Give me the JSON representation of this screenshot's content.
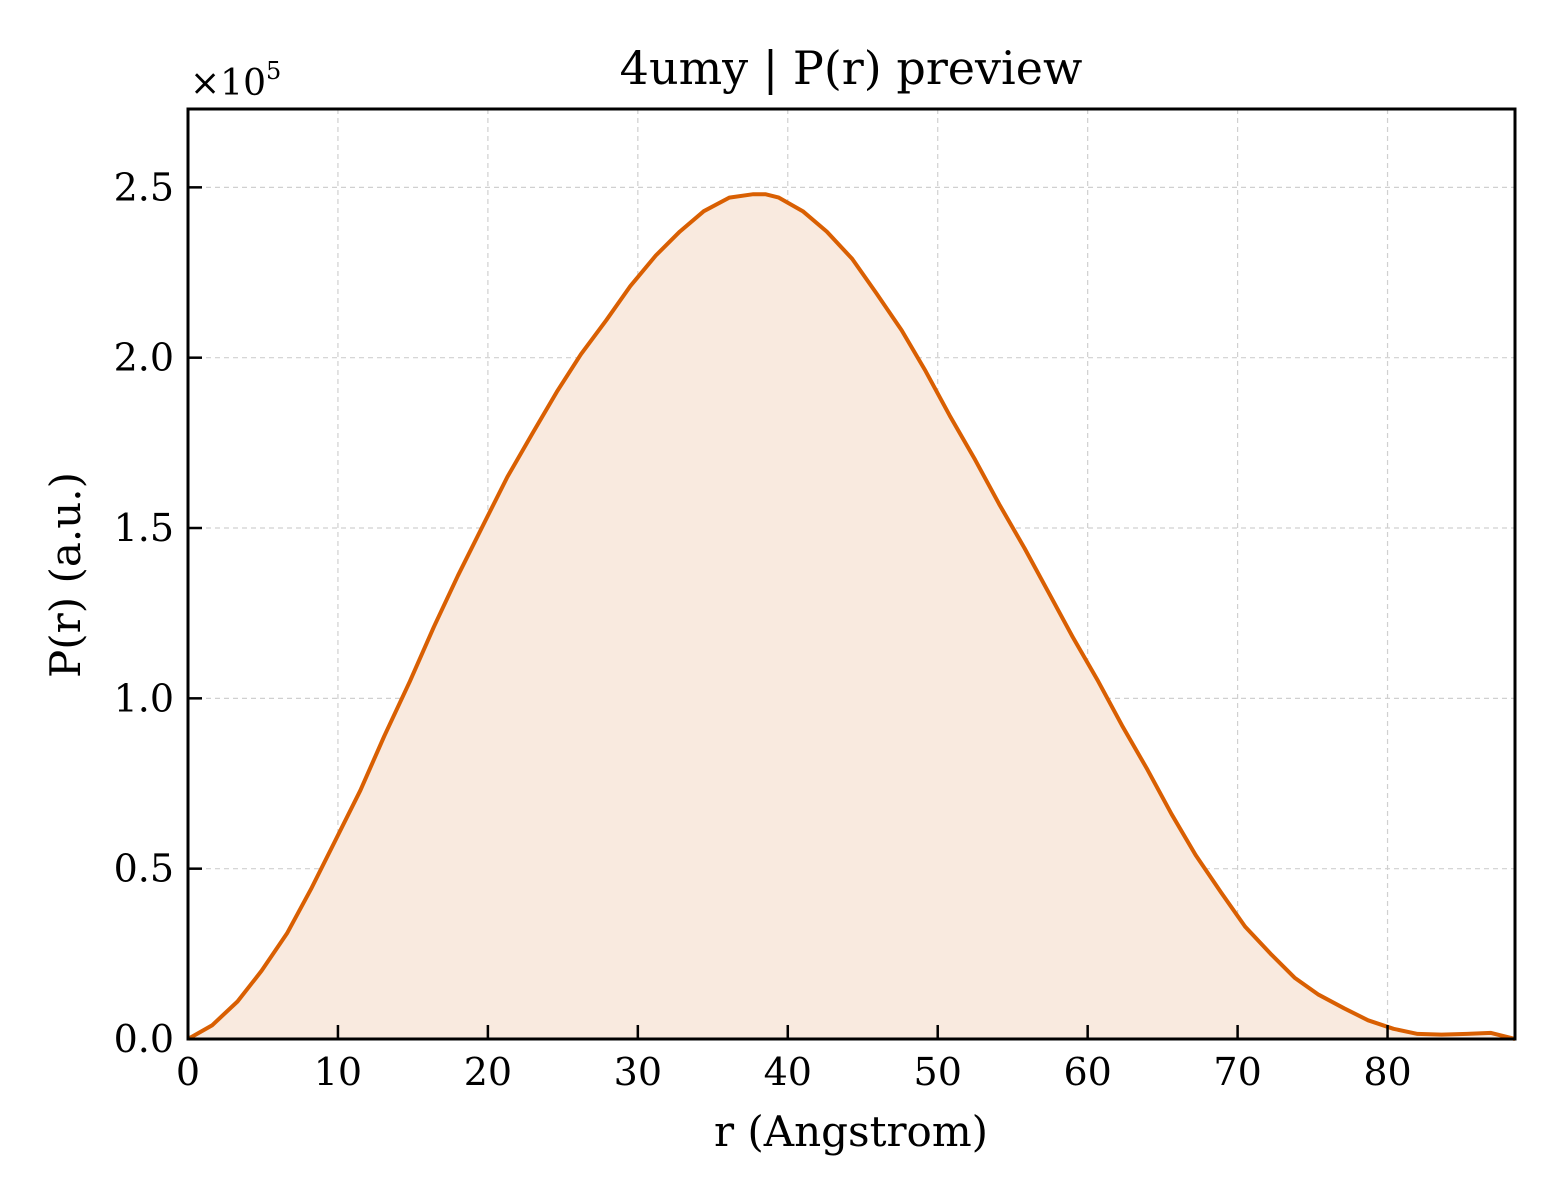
{
  "chart_data": {
    "type": "area",
    "title": "4umy | P(r) preview",
    "xlabel": "r (Angstrom)",
    "ylabel": "P(r) (a.u.)",
    "y_multiplier": {
      "base": "×10",
      "exponent": "5"
    },
    "xlim": [
      0,
      88.5
    ],
    "ylim": [
      0,
      273000
    ],
    "x_ticks": [
      0,
      10,
      20,
      30,
      40,
      50,
      60,
      70,
      80
    ],
    "y_ticks": [
      0,
      50000,
      100000,
      150000,
      200000,
      250000
    ],
    "x_tick_labels": [
      "0",
      "10",
      "20",
      "30",
      "40",
      "50",
      "60",
      "70",
      "80"
    ],
    "y_tick_labels": [
      "0.0",
      "0.5",
      "1.0",
      "1.5",
      "2.0",
      "2.5"
    ],
    "grid": true,
    "line_color": "#d95f02",
    "fill_color": "#f9eadf",
    "series": [
      {
        "x": [
          0,
          1.6,
          3.3,
          4.9,
          6.6,
          8.2,
          9.8,
          11.5,
          13.1,
          14.8,
          16.4,
          18.0,
          19.7,
          21.3,
          23.0,
          24.6,
          26.2,
          27.9,
          29.5,
          31.2,
          32.8,
          34.4,
          36.1,
          37.7,
          38.5,
          39.4,
          41.0,
          42.6,
          44.3,
          45.9,
          47.6,
          49.2,
          50.8,
          52.5,
          54.1,
          55.8,
          57.4,
          59.0,
          60.7,
          62.3,
          64.0,
          65.6,
          67.2,
          68.9,
          70.5,
          72.2,
          73.8,
          75.4,
          77.1,
          78.7,
          80.4,
          82.0,
          83.6,
          85.3,
          86.9,
          88.5
        ],
        "y": [
          0,
          4000,
          11000,
          20000,
          31000,
          44000,
          58000,
          73000,
          89000,
          105000,
          121000,
          136000,
          151000,
          165000,
          178000,
          190000,
          201000,
          211000,
          221000,
          230000,
          237000,
          243000,
          247000,
          248000,
          248000,
          247000,
          243000,
          237000,
          229000,
          219000,
          208000,
          196000,
          183000,
          170000,
          157000,
          144000,
          131000,
          118000,
          105000,
          92000,
          79000,
          66000,
          54000,
          43000,
          33000,
          25000,
          18000,
          13000,
          9000,
          5500,
          3000,
          1500,
          1300,
          1500,
          1800,
          0
        ]
      }
    ]
  }
}
